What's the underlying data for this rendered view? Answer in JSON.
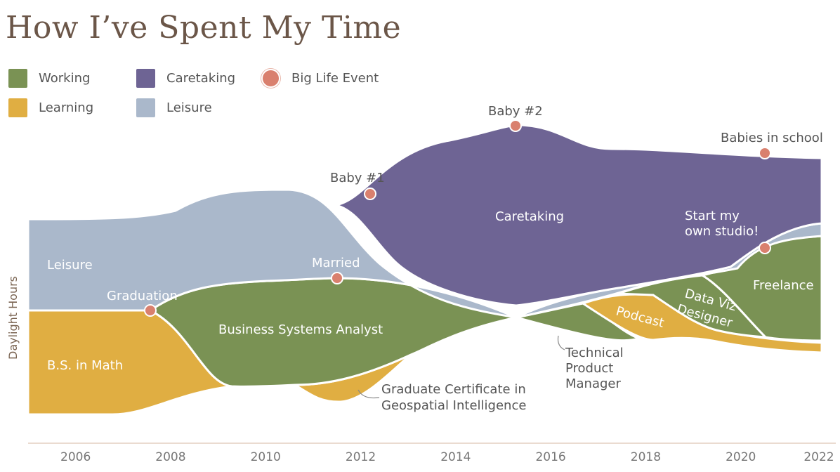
{
  "title": "How I’ve Spent My Time",
  "legend": [
    {
      "label": "Working",
      "color": "#7a9254",
      "kind": "swatch"
    },
    {
      "label": "Caretaking",
      "color": "#6e6494",
      "kind": "swatch"
    },
    {
      "label": "Big Life Event",
      "color": "#d9806e",
      "kind": "dot"
    },
    {
      "label": "Learning",
      "color": "#e0ae42",
      "kind": "swatch"
    },
    {
      "label": "Leisure",
      "color": "#aab8cb",
      "kind": "swatch"
    }
  ],
  "chart_data": {
    "type": "area",
    "ylabel": "Daylight Hours",
    "x_ticks": [
      "2006",
      "2008",
      "2010",
      "2012",
      "2014",
      "2016",
      "2018",
      "2020",
      "2022"
    ],
    "xlim": [
      2005,
      2022
    ],
    "series": [
      {
        "name": "Working",
        "color": "#7a9254"
      },
      {
        "name": "Learning",
        "color": "#e0ae42"
      },
      {
        "name": "Caretaking",
        "color": "#6e6494"
      },
      {
        "name": "Leisure",
        "color": "#aab8cb"
      }
    ],
    "stream_labels": [
      {
        "text": "Leisure",
        "series": "Leisure"
      },
      {
        "text": "Caretaking",
        "series": "Caretaking"
      },
      {
        "text": "B.S. in Math",
        "series": "Learning"
      },
      {
        "text": "Business Systems Analyst",
        "series": "Working"
      },
      {
        "text": "Freelance",
        "series": "Working"
      },
      {
        "text": "Podcast",
        "series": "Learning"
      },
      {
        "text": "Data Viz",
        "series": "Working"
      },
      {
        "text": "Designer",
        "series": "Working"
      }
    ],
    "annotations": [
      {
        "lines": [
          "Graduate Certificate in",
          "Geospatial Intelligence"
        ]
      },
      {
        "lines": [
          "Technical",
          "Product",
          "Manager"
        ]
      },
      {
        "lines": [
          "Start my",
          "own studio!"
        ]
      }
    ],
    "events": [
      {
        "label": "Graduation",
        "year": 2007.5
      },
      {
        "label": "Married",
        "year": 2011.5
      },
      {
        "label": "Baby #1",
        "year": 2012.2
      },
      {
        "label": "Baby #2",
        "year": 2015.3
      },
      {
        "label": "Babies in school",
        "year": 2020.6
      },
      {
        "label": "",
        "year": 2020.6
      }
    ]
  }
}
